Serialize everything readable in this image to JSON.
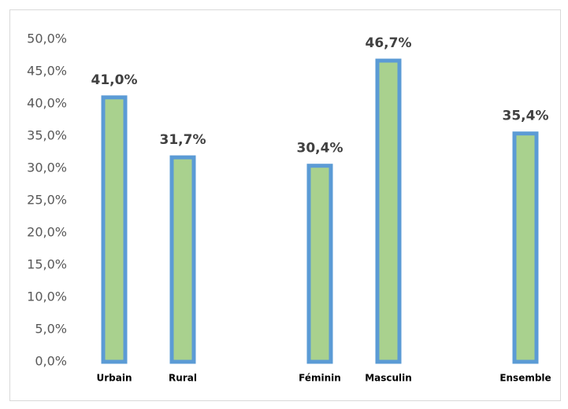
{
  "chart_data": {
    "type": "bar",
    "categories": [
      "Urbain",
      "Rural",
      null,
      "Féminin",
      "Masculin",
      null,
      "Ensemble"
    ],
    "values": [
      41.0,
      31.7,
      null,
      30.4,
      46.7,
      null,
      35.4
    ],
    "value_labels": [
      "41,0%",
      "31,7%",
      null,
      "30,4%",
      "46,7%",
      null,
      "35,4%"
    ],
    "color": "#a9d18e",
    "edge_color": "#5b9bd5",
    "ylim": [
      0,
      50
    ],
    "yticks": [
      {
        "value": 0,
        "label": "0,0%"
      },
      {
        "value": 5,
        "label": "5,0%"
      },
      {
        "value": 10,
        "label": "10,0%"
      },
      {
        "value": 15,
        "label": "15,0%"
      },
      {
        "value": 20,
        "label": "20,0%"
      },
      {
        "value": 25,
        "label": "25,0%"
      },
      {
        "value": 30,
        "label": "30,0%"
      },
      {
        "value": 35,
        "label": "35,0%"
      },
      {
        "value": 40,
        "label": "40,0%"
      },
      {
        "value": 45,
        "label": "45,0%"
      },
      {
        "value": 50,
        "label": "50,0%"
      }
    ],
    "grid": false
  }
}
